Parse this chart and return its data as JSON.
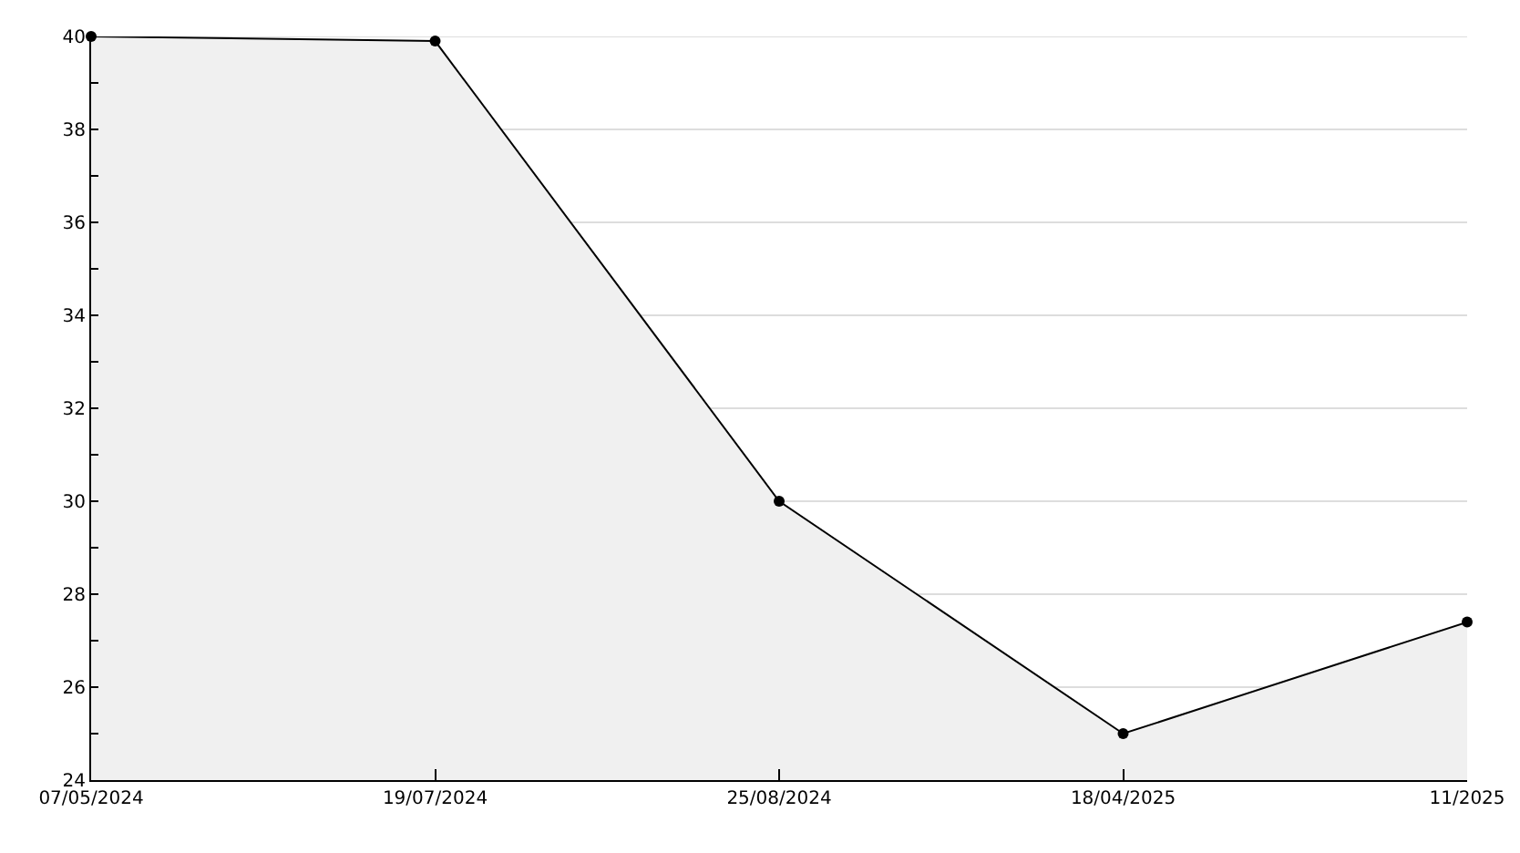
{
  "chart_data": {
    "type": "area",
    "categories": [
      "07/05/2024",
      "19/07/2024",
      "25/08/2024",
      "18/04/2025",
      "11/2025"
    ],
    "series": [
      {
        "color": "#000000",
        "values": [
          40,
          39.9,
          30,
          25,
          27.4
        ]
      }
    ],
    "ylim": [
      24,
      40
    ],
    "yticks": [
      24,
      {
        "value": 25,
        "label": null
      },
      26,
      {
        "value": 27,
        "label": null
      },
      28,
      {
        "value": 29,
        "label": null
      },
      30,
      {
        "value": 31,
        "label": null
      },
      32,
      {
        "value": 33,
        "label": null
      },
      34,
      {
        "value": 35,
        "label": null
      },
      36,
      {
        "value": 37,
        "label": null
      },
      38,
      {
        "value": 39,
        "label": null
      },
      40
    ],
    "grid": "y",
    "marker": "circle",
    "line_style": "solid"
  }
}
